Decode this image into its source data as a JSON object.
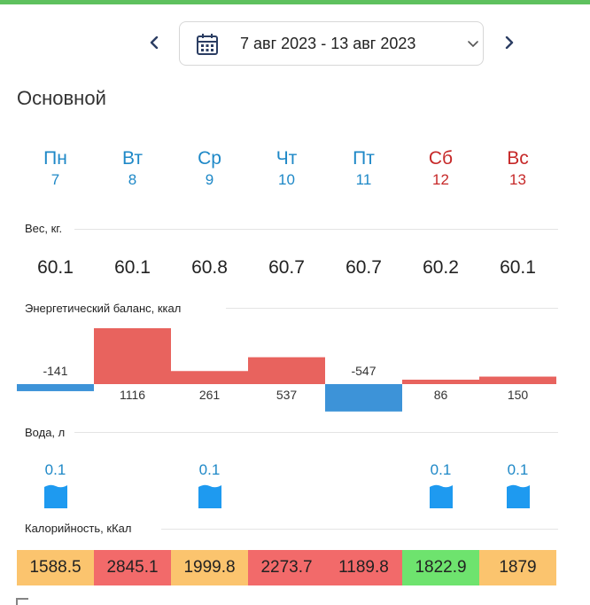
{
  "date_range": "7 авг 2023 - 13 авг 2023",
  "section_title": "Основной",
  "colors": {
    "weekday": "#1e88c7",
    "weekend": "#c62828",
    "positive_bar": "#e8635e",
    "negative_bar": "#3d93d8",
    "water": "#1e9af0",
    "cal_low": "#fbc46e",
    "cal_high": "#f26a6a",
    "cal_ok": "#6ee36e"
  },
  "days": [
    {
      "name": "Пн",
      "date": "7",
      "weekend": false
    },
    {
      "name": "Вт",
      "date": "8",
      "weekend": false
    },
    {
      "name": "Ср",
      "date": "9",
      "weekend": false
    },
    {
      "name": "Чт",
      "date": "10",
      "weekend": false
    },
    {
      "name": "Пт",
      "date": "11",
      "weekend": false
    },
    {
      "name": "Сб",
      "date": "12",
      "weekend": true
    },
    {
      "name": "Вс",
      "date": "13",
      "weekend": true
    }
  ],
  "weight": {
    "label": "Вес, кг.",
    "values": [
      "60.1",
      "60.1",
      "60.8",
      "60.7",
      "60.7",
      "60.2",
      "60.1"
    ]
  },
  "energy": {
    "label": "Энергетический баланс, ккал",
    "values": [
      -141,
      1116,
      261,
      537,
      -547,
      86,
      150
    ]
  },
  "water": {
    "label": "Вода, л",
    "values": [
      "0.1",
      "",
      "0.1",
      "",
      "",
      "0.1",
      "0.1"
    ]
  },
  "calories": {
    "label": "Калорийность, кКал",
    "cells": [
      {
        "value": "1588.5",
        "status": "cal_low"
      },
      {
        "value": "2845.1",
        "status": "cal_high"
      },
      {
        "value": "1999.8",
        "status": "cal_low"
      },
      {
        "value": "2273.7",
        "status": "cal_high"
      },
      {
        "value": "1189.8",
        "status": "cal_high"
      },
      {
        "value": "1822.9",
        "status": "cal_ok"
      },
      {
        "value": "1879",
        "status": "cal_low"
      }
    ]
  }
}
